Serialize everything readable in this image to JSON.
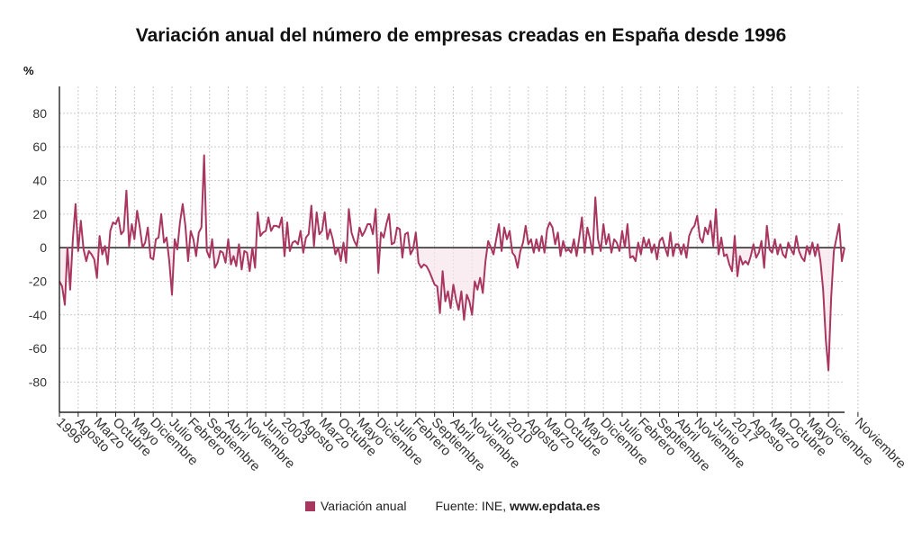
{
  "chart_data": {
    "type": "area",
    "title": "Variación anual del número de empresas creadas en España desde 1996",
    "ylabel": "%",
    "xlabel": "",
    "ylim": [
      -98,
      96
    ],
    "yticks": [
      80,
      60,
      40,
      20,
      0,
      -20,
      -40,
      -60,
      -80
    ],
    "grid": true,
    "colors": {
      "line": "#a8365f",
      "fill": "#f8e6ec",
      "zero": "#222222"
    },
    "series": [
      {
        "name": "Variación anual",
        "start": "1996-01",
        "frequency": "monthly",
        "values": [
          -20,
          -23,
          -34,
          0,
          -25,
          5,
          26,
          -2,
          16,
          -1,
          -8,
          -2,
          -4,
          -7,
          -18,
          7,
          -4,
          1,
          -10,
          10,
          15,
          14,
          18,
          8,
          10,
          34,
          1,
          14,
          5,
          22,
          12,
          0,
          3,
          12,
          -6,
          -7,
          5,
          6,
          20,
          3,
          6,
          -8,
          -28,
          5,
          -1,
          15,
          26,
          13,
          -8,
          10,
          5,
          -5,
          9,
          12,
          55,
          -2,
          -6,
          5,
          -12,
          -9,
          -2,
          -3,
          -9,
          5,
          -10,
          -5,
          -11,
          2,
          -13,
          -2,
          -3,
          -14,
          0,
          -12,
          21,
          7,
          9,
          10,
          18,
          10,
          13,
          13,
          12,
          18,
          -5,
          15,
          -2,
          3,
          4,
          2,
          10,
          -3,
          6,
          8,
          25,
          1,
          21,
          8,
          10,
          21,
          5,
          11,
          5,
          -4,
          0,
          -8,
          3,
          -9,
          23,
          9,
          4,
          1,
          12,
          7,
          10,
          14,
          14,
          8,
          23,
          -15,
          9,
          6,
          14,
          20,
          2,
          3,
          12,
          11,
          -6,
          8,
          9,
          -4,
          -1,
          9,
          -9,
          -12,
          -10,
          -11,
          -14,
          -18,
          -22,
          -23,
          -39,
          -14,
          -32,
          -26,
          -36,
          -22,
          -31,
          -37,
          -26,
          -43,
          -28,
          -32,
          -40,
          -20,
          -25,
          -18,
          -27,
          -8,
          4,
          0,
          -4,
          5,
          14,
          -2,
          12,
          5,
          10,
          -3,
          -5,
          -12,
          -2,
          3,
          13,
          2,
          5,
          -3,
          5,
          -2,
          7,
          -3,
          11,
          15,
          12,
          2,
          9,
          -5,
          4,
          -2,
          -1,
          -3,
          5,
          -5,
          6,
          18,
          -3,
          12,
          5,
          -4,
          30,
          5,
          -2,
          14,
          2,
          8,
          -3,
          5,
          3,
          -2,
          10,
          0,
          14,
          -6,
          -5,
          -8,
          3,
          -4,
          6,
          0,
          5,
          -3,
          2,
          -7,
          4,
          6,
          0,
          -5,
          9,
          -5,
          2,
          2,
          -4,
          2,
          -6,
          7,
          11,
          13,
          19,
          6,
          3,
          12,
          8,
          16,
          1,
          23,
          -4,
          6,
          -5,
          -4,
          -10,
          -14,
          7,
          -17,
          -5,
          -10,
          -8,
          -10,
          -5,
          2,
          -6,
          -3,
          4,
          -12,
          13,
          -1,
          -3,
          5,
          -4,
          2,
          -4,
          -6,
          3,
          -1,
          -4,
          7,
          -2,
          -6,
          -8,
          1,
          -4,
          3,
          -5,
          2,
          -8,
          -25,
          -55,
          -73,
          -30,
          -2,
          6,
          14,
          -8,
          0
        ]
      }
    ],
    "x_tick_labels": [
      "1996",
      "Agosto",
      "Marzo",
      "Octubre",
      "Mayo",
      "Diciembre",
      "Julio",
      "Febrero",
      "Septiembre",
      "Abril",
      "Noviembre",
      "Junio",
      "2003",
      "Agosto",
      "Marzo",
      "Octubre",
      "Mayo",
      "Diciembre",
      "Julio",
      "Febrero",
      "Septiembre",
      "Abril",
      "Noviembre",
      "Junio",
      "2010",
      "Agosto",
      "Marzo",
      "Octubre",
      "Mayo",
      "Diciembre",
      "Julio",
      "Febrero",
      "Septiembre",
      "Abril",
      "Noviembre",
      "Junio",
      "2017",
      "Agosto",
      "Marzo",
      "Octubre",
      "Mayo",
      "Diciembre",
      "Noviembre"
    ],
    "x_tick_months": [
      0,
      7,
      14,
      21,
      28,
      35,
      42,
      49,
      56,
      63,
      70,
      77,
      84,
      91,
      98,
      105,
      112,
      119,
      126,
      133,
      140,
      147,
      154,
      161,
      168,
      175,
      182,
      189,
      196,
      203,
      210,
      217,
      224,
      231,
      238,
      245,
      252,
      259,
      266,
      273,
      280,
      287,
      298
    ]
  },
  "legend": {
    "series_label": "Variación anual"
  },
  "source": {
    "prefix": "Fuente: INE, ",
    "site": "www.epdata.es"
  }
}
